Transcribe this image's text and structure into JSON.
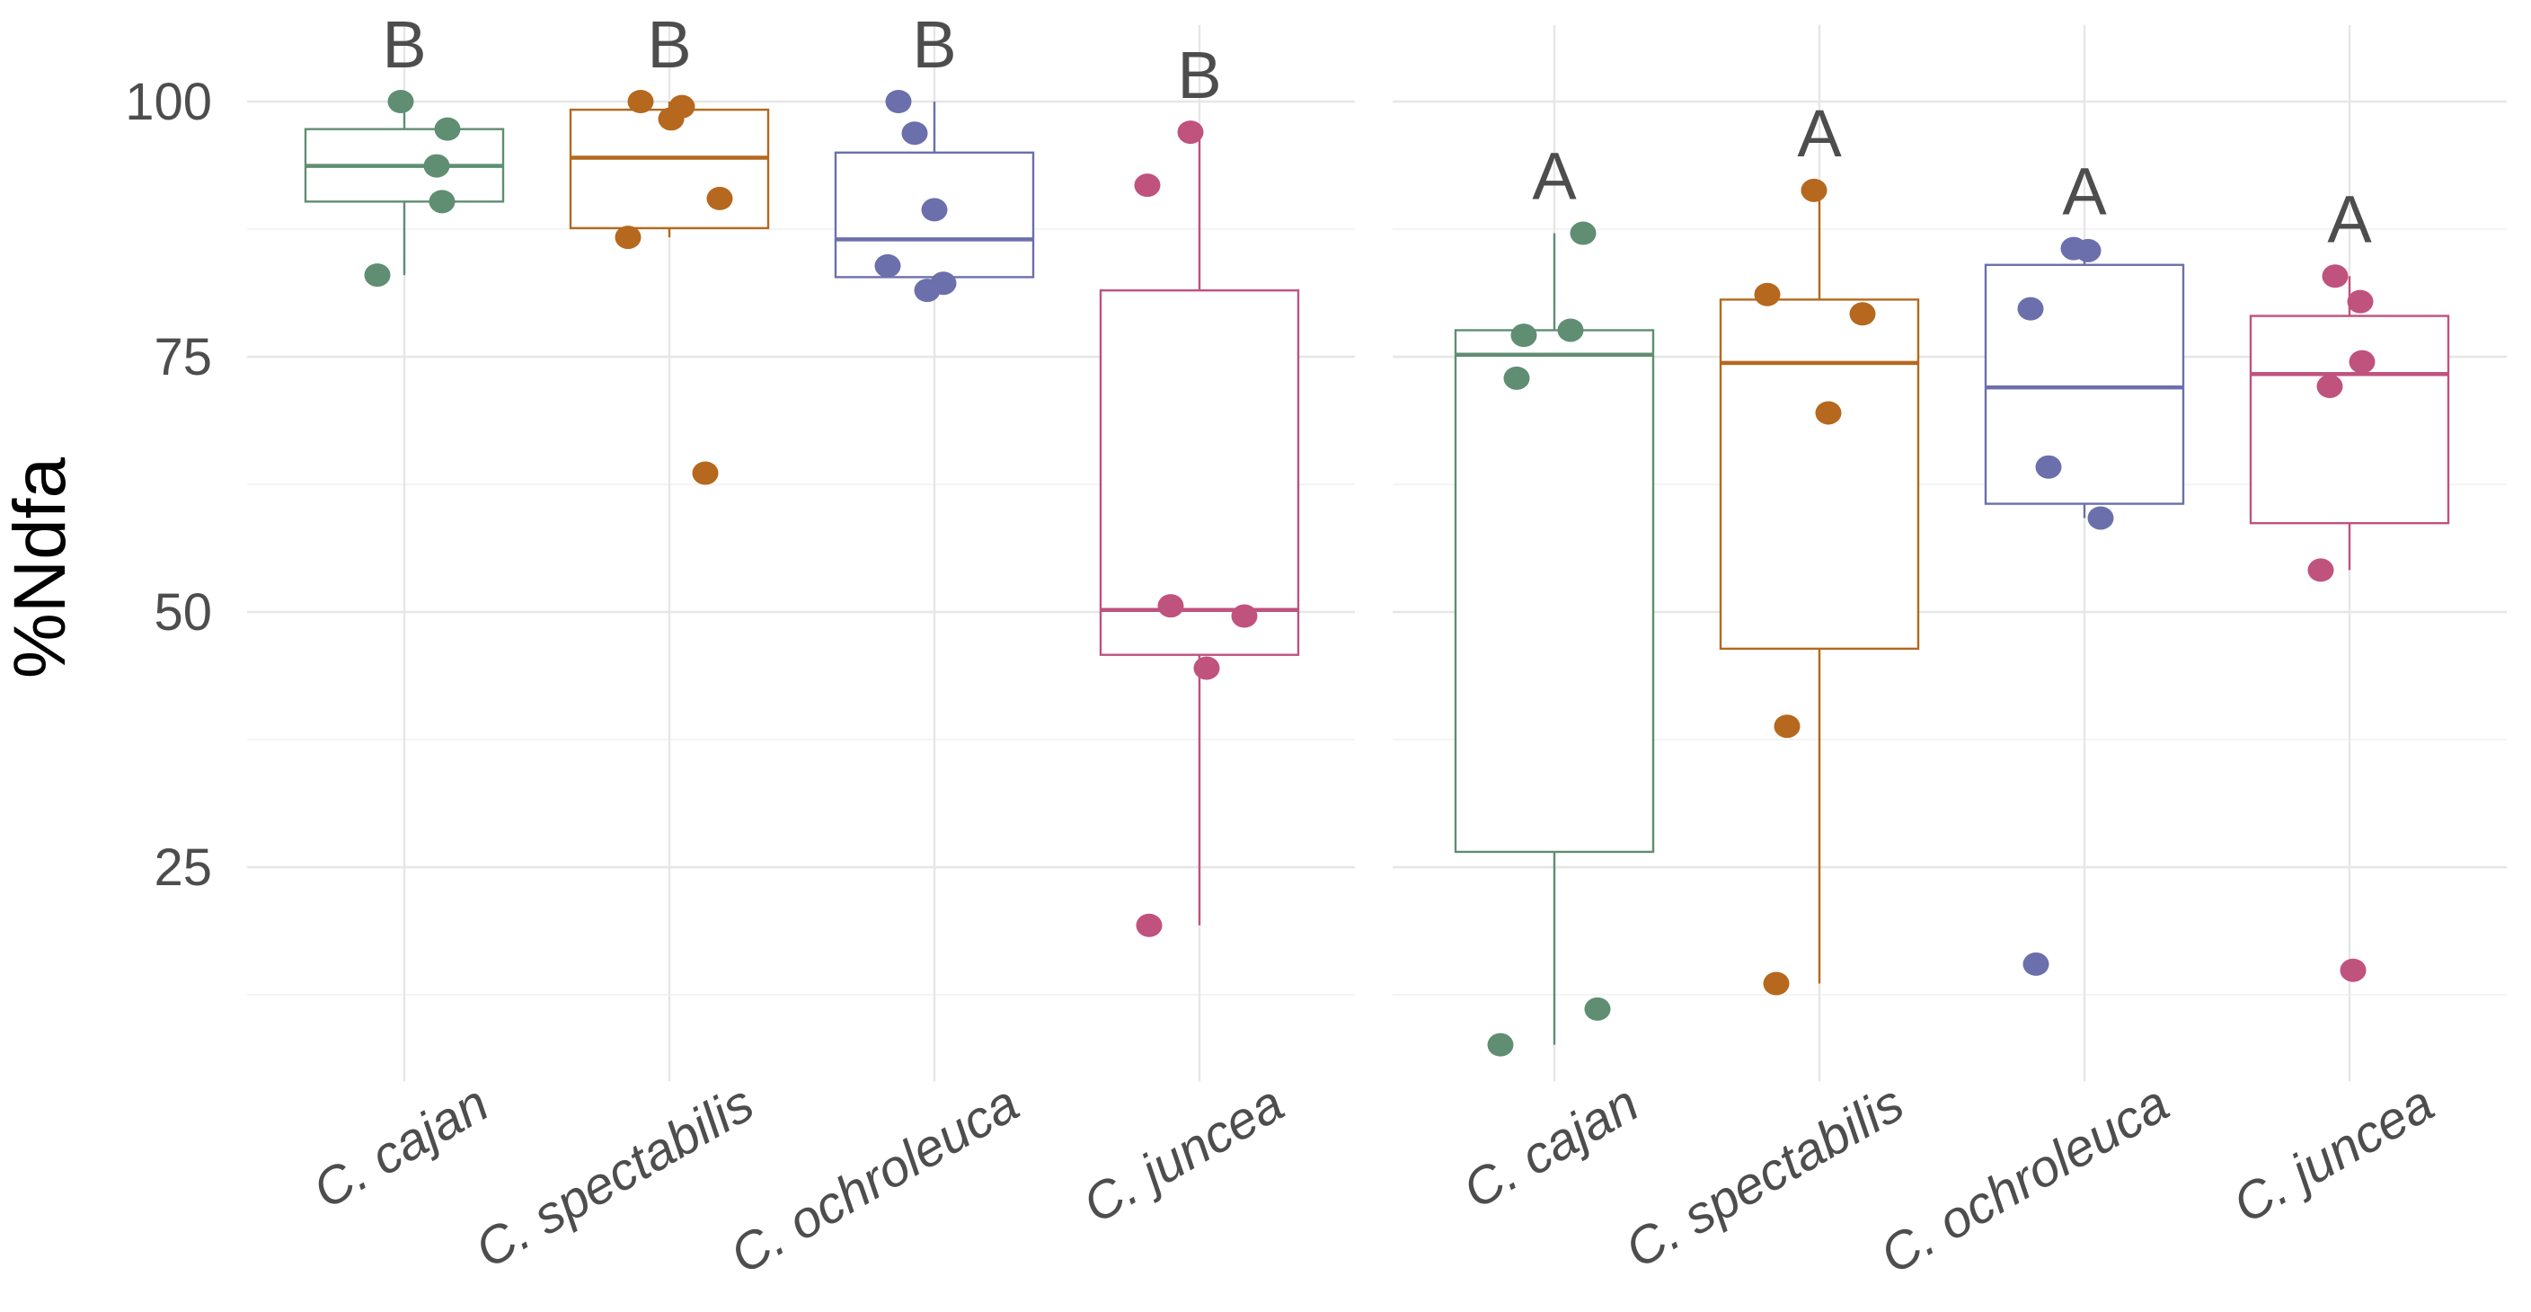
{
  "chart_data": {
    "type": "box",
    "title": "",
    "xlabel": "",
    "ylabel": "%Ndfa",
    "ylim": [
      3,
      108
    ],
    "y_ticks": [
      25,
      50,
      75,
      100
    ],
    "grid": true,
    "legend": "none",
    "colors": {
      "C. cajan": "#5f8e72",
      "C. spectabilis": "#b5681e",
      "C. ochroleuca": "#6b6fac",
      "C. juncea": "#c0527e"
    },
    "panels": [
      {
        "name": "panel-1",
        "categories": [
          "C. cajan",
          "C. spectabilis",
          "C. ochroleuca",
          "C. juncea"
        ],
        "letters": [
          "B",
          "B",
          "B",
          "B"
        ],
        "boxes": [
          {
            "q1": 90.2,
            "median": 93.7,
            "q3": 97.3,
            "whisker_low": 83,
            "whisker_high": 100
          },
          {
            "q1": 87.6,
            "median": 94.5,
            "q3": 99.2,
            "whisker_low": 86.7,
            "whisker_high": 100
          },
          {
            "q1": 82.8,
            "median": 86.5,
            "q3": 95.0,
            "whisker_low": 81.5,
            "whisker_high": 100
          },
          {
            "q1": 45.8,
            "median": 50.2,
            "q3": 81.5,
            "whisker_low": 19.3,
            "whisker_high": 97
          }
        ],
        "points": [
          [
            100,
            97.3,
            93.7,
            90.2,
            83
          ],
          [
            100,
            99.5,
            98.3,
            86.7,
            90.5,
            63.6
          ],
          [
            100,
            96.9,
            89.4,
            83.9,
            82.2,
            81.5
          ],
          [
            97,
            91.8,
            50.6,
            49.6,
            44.5,
            19.3
          ]
        ]
      },
      {
        "name": "panel-2",
        "categories": [
          "C. cajan",
          "C. spectabilis",
          "C. ochroleuca",
          "C. juncea"
        ],
        "letters": [
          "A",
          "A",
          "A",
          "A"
        ],
        "boxes": [
          {
            "q1": 26.5,
            "median": 75.2,
            "q3": 77.6,
            "whisker_low": 7.6,
            "whisker_high": 87.1
          },
          {
            "q1": 46.4,
            "median": 74.4,
            "q3": 80.6,
            "whisker_low": 13.6,
            "whisker_high": 91.3
          },
          {
            "q1": 60.6,
            "median": 72.0,
            "q3": 84.0,
            "whisker_low": 59.2,
            "whisker_high": 85.6
          },
          {
            "q1": 58.7,
            "median": 73.3,
            "q3": 79.0,
            "whisker_low": 54.1,
            "whisker_high": 82.9
          }
        ],
        "points": [
          [
            87.1,
            77.6,
            77.1,
            72.9,
            11.1,
            7.6
          ],
          [
            91.3,
            81.1,
            79.2,
            69.5,
            38.8,
            13.6
          ],
          [
            85.6,
            85.4,
            79.7,
            64.2,
            59.2,
            15.5
          ],
          [
            82.9,
            80.4,
            74.5,
            72.1,
            54.1,
            14.9
          ]
        ]
      }
    ]
  }
}
